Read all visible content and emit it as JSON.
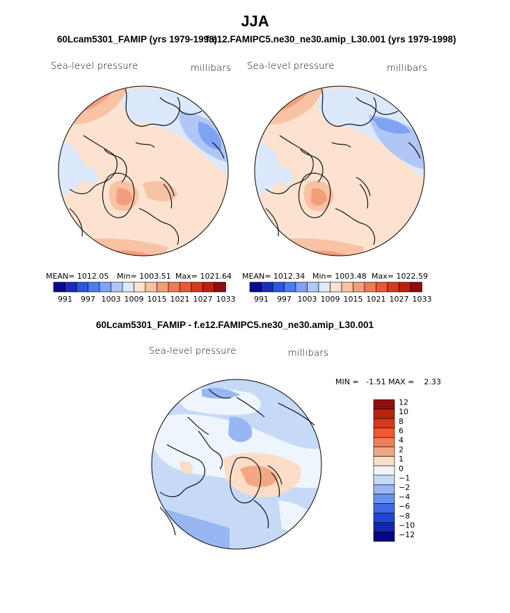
{
  "title": "JJA",
  "case1": "60Lcam5301_FAMIP (yrs 1979-1998)",
  "case2": "f.e12.FAMIPC5.ne30_ne30.amip_L30.001 (yrs 1979-1998)",
  "diff_title": "60Lcam5301_FAMIP - f.e12.FAMIPC5.ne30_ne30.amip_L30.001",
  "chart_data": [
    {
      "type": "heatmap",
      "panel": "top-left",
      "field": "Sea-level pressure",
      "units": "millibars",
      "projection": "north polar stereographic",
      "mean": "MEAN= 1012.05",
      "min": "Min= 1003.51",
      "max": "Max= 1021.64",
      "stats": {
        "mean": 1012.05,
        "min": 1003.51,
        "max": 1021.64
      },
      "colorbar_labels": [
        "991",
        "997",
        "1003",
        "1009",
        "1015",
        "1021",
        "1027",
        "1033"
      ],
      "colorbar_levels": [
        991,
        994,
        997,
        1000,
        1003,
        1006,
        1009,
        1012,
        1015,
        1018,
        1021,
        1024,
        1027,
        1030,
        1033
      ]
    },
    {
      "type": "heatmap",
      "panel": "top-right",
      "field": "Sea-level pressure",
      "units": "millibars",
      "projection": "north polar stereographic",
      "mean": "MEAN= 1012.34",
      "min": "Min= 1003.48",
      "max": "Max= 1022.59",
      "stats": {
        "mean": 1012.34,
        "min": 1003.48,
        "max": 1022.59
      },
      "colorbar_labels": [
        "991",
        "997",
        "1003",
        "1009",
        "1015",
        "1021",
        "1027",
        "1033"
      ],
      "colorbar_levels": [
        991,
        994,
        997,
        1000,
        1003,
        1006,
        1009,
        1012,
        1015,
        1018,
        1021,
        1024,
        1027,
        1030,
        1033
      ]
    },
    {
      "type": "heatmap",
      "panel": "bottom-difference",
      "field": "Sea-level pressure",
      "units": "millibars",
      "projection": "north polar stereographic",
      "minmax_text": "MIN =   -1.51 MAX =    2.33",
      "stats": {
        "min": -1.51,
        "max": 2.33
      },
      "colorbar_labels": [
        "12",
        "10",
        "8",
        "6",
        "4",
        "2",
        "1",
        "0",
        "-1",
        "-2",
        "-4",
        "-6",
        "-8",
        "-10",
        "-12"
      ],
      "colorbar_levels": [
        12,
        10,
        8,
        6,
        4,
        2,
        1,
        0,
        -1,
        -2,
        -4,
        -6,
        -8,
        -10,
        -12
      ]
    }
  ],
  "colors": {
    "abs_scale": [
      "#0a0a8c",
      "#1c2db5",
      "#2a55dc",
      "#4a7cef",
      "#7fa2f2",
      "#b0c7f6",
      "#dce8fb",
      "#fde2d0",
      "#f8c2a4",
      "#f49d7a",
      "#ee7a52",
      "#e55a32",
      "#d53a1a",
      "#b8210e",
      "#8e0c0c"
    ],
    "diff_scale": [
      "#900e0e",
      "#b9230f",
      "#d8391a",
      "#ec5a2e",
      "#f07f56",
      "#f3a884",
      "#fbdcc6",
      "#eef5fc",
      "#c6d9f7",
      "#98b6f1",
      "#6b92ec",
      "#3f6ae6",
      "#2244d6",
      "#1226b2",
      "#060683"
    ]
  }
}
